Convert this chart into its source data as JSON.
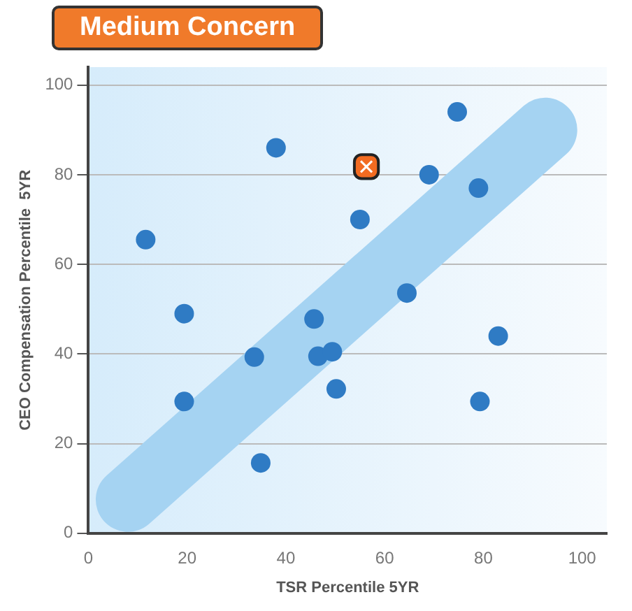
{
  "chart_data": {
    "type": "scatter",
    "title": "Medium Concern",
    "xlabel": "TSR Percentile 5YR",
    "ylabel": "CEO Compensation Percentile  5YR",
    "xlim": [
      0,
      105
    ],
    "xticks": [
      0,
      20,
      40,
      60,
      80,
      100
    ],
    "ylim": [
      0,
      104
    ],
    "yticks": [
      0,
      20,
      40,
      60,
      80,
      100
    ],
    "grid": "y",
    "legend": false,
    "marker": "circle",
    "series": [
      {
        "type": "line",
        "marker": "none",
        "color": "#a5d3f2",
        "x": [
          8,
          92.5
        ],
        "values": [
          7.5,
          90
        ]
      },
      {
        "color": "#2f7bc4",
        "x": [
          11.6,
          38,
          74.7,
          69,
          79,
          55,
          64.5,
          19.4,
          45.7,
          83,
          33.6,
          46.5,
          49.4,
          50.2,
          19.4,
          79.3,
          34.9
        ],
        "values": [
          65.5,
          86,
          94,
          80,
          77,
          70,
          53.6,
          49,
          47.8,
          44,
          39.3,
          39.5,
          40.5,
          32.2,
          29.4,
          29.4,
          15.7
        ]
      },
      {
        "color": "#f26b21",
        "marker": "square",
        "x": [
          56.3
        ],
        "values": [
          81.8
        ]
      }
    ]
  }
}
